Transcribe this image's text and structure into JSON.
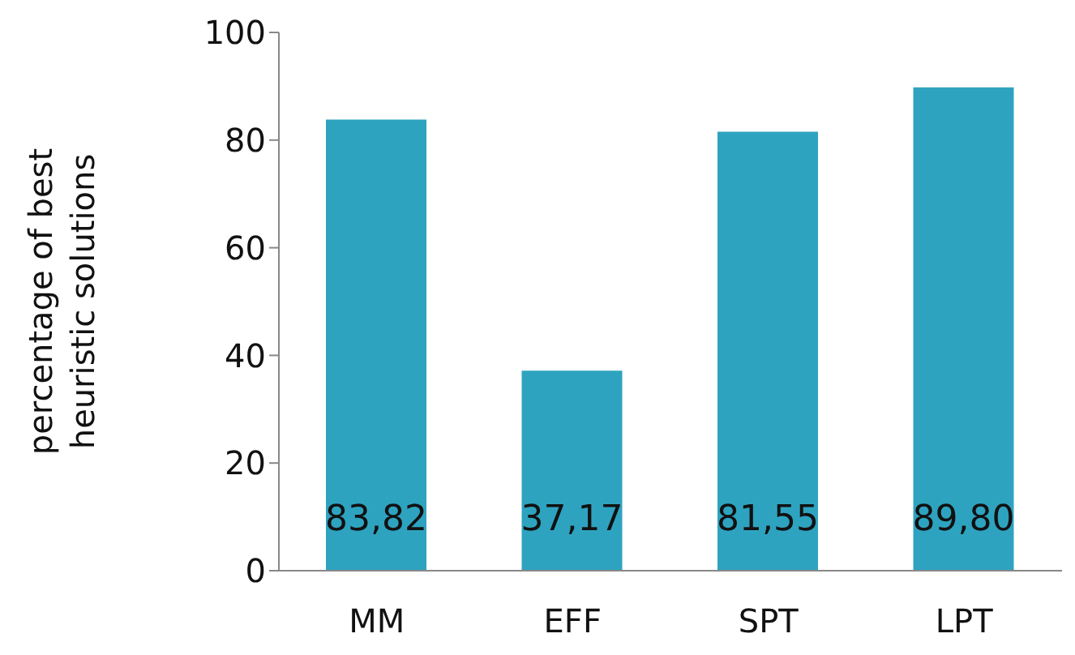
{
  "chart_data": {
    "type": "bar",
    "ylabel": "percentage of best heuristic solutions",
    "categories": [
      "MM",
      "EFF",
      "SPT",
      "LPT"
    ],
    "values": [
      83.82,
      37.17,
      81.55,
      89.8
    ],
    "value_labels": [
      "83,82",
      "37,17",
      "81,55",
      "89,80"
    ],
    "color": "#2ea3c0",
    "ylim": [
      0,
      100
    ],
    "yticks": [
      0,
      20,
      40,
      60,
      80,
      100
    ],
    "grid": false,
    "legend": false
  }
}
